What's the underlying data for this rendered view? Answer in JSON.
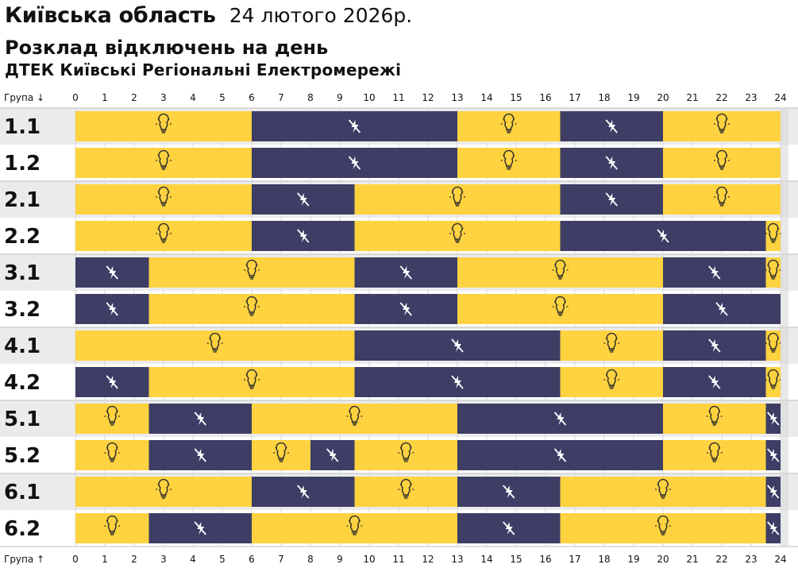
{
  "header": {
    "region": "Київська область",
    "date": "24 лютого 2026р.",
    "subtitle": "Розклад відключень на день",
    "company": "ДТЕК Київські Регіональні Електромережі"
  },
  "colors": {
    "power_on": "#FFD23F",
    "power_off": "#3D3D66",
    "row_odd_bg": "#EBEBEB",
    "row_even_bg": "#FFFFFF",
    "separator": "#BDBDBD",
    "text": "#111111"
  },
  "chart_data": {
    "type": "timeline",
    "axis_label_top": "Група ↓",
    "axis_label_bottom": "Група ↑",
    "x_range": [
      0,
      24
    ],
    "x_ticks": [
      "0",
      "1",
      "2",
      "3",
      "4",
      "5",
      "6",
      "7",
      "8",
      "9",
      "10",
      "11",
      "12",
      "13",
      "14",
      "15",
      "16",
      "17",
      "18",
      "19",
      "20",
      "21",
      "22",
      "23",
      "24"
    ],
    "states": {
      "on": "power on (bulb icon)",
      "off": "power off (no-power icon)"
    },
    "groups": [
      {
        "name": "1.1",
        "segments": [
          {
            "start": 0,
            "end": 6,
            "state": "on"
          },
          {
            "start": 6,
            "end": 13,
            "state": "off"
          },
          {
            "start": 13,
            "end": 16.5,
            "state": "on"
          },
          {
            "start": 16.5,
            "end": 20,
            "state": "off"
          },
          {
            "start": 20,
            "end": 24,
            "state": "on"
          }
        ]
      },
      {
        "name": "1.2",
        "segments": [
          {
            "start": 0,
            "end": 6,
            "state": "on"
          },
          {
            "start": 6,
            "end": 13,
            "state": "off"
          },
          {
            "start": 13,
            "end": 16.5,
            "state": "on"
          },
          {
            "start": 16.5,
            "end": 20,
            "state": "off"
          },
          {
            "start": 20,
            "end": 24,
            "state": "on"
          }
        ]
      },
      {
        "name": "2.1",
        "segments": [
          {
            "start": 0,
            "end": 6,
            "state": "on"
          },
          {
            "start": 6,
            "end": 9.5,
            "state": "off"
          },
          {
            "start": 9.5,
            "end": 16.5,
            "state": "on"
          },
          {
            "start": 16.5,
            "end": 20,
            "state": "off"
          },
          {
            "start": 20,
            "end": 24,
            "state": "on"
          }
        ]
      },
      {
        "name": "2.2",
        "segments": [
          {
            "start": 0,
            "end": 6,
            "state": "on"
          },
          {
            "start": 6,
            "end": 9.5,
            "state": "off"
          },
          {
            "start": 9.5,
            "end": 16.5,
            "state": "on"
          },
          {
            "start": 16.5,
            "end": 23.5,
            "state": "off"
          },
          {
            "start": 23.5,
            "end": 24,
            "state": "on"
          }
        ]
      },
      {
        "name": "3.1",
        "segments": [
          {
            "start": 0,
            "end": 2.5,
            "state": "off"
          },
          {
            "start": 2.5,
            "end": 9.5,
            "state": "on"
          },
          {
            "start": 9.5,
            "end": 13,
            "state": "off"
          },
          {
            "start": 13,
            "end": 20,
            "state": "on"
          },
          {
            "start": 20,
            "end": 23.5,
            "state": "off"
          },
          {
            "start": 23.5,
            "end": 24,
            "state": "on"
          }
        ]
      },
      {
        "name": "3.2",
        "segments": [
          {
            "start": 0,
            "end": 2.5,
            "state": "off"
          },
          {
            "start": 2.5,
            "end": 9.5,
            "state": "on"
          },
          {
            "start": 9.5,
            "end": 13,
            "state": "off"
          },
          {
            "start": 13,
            "end": 20,
            "state": "on"
          },
          {
            "start": 20,
            "end": 24,
            "state": "off"
          }
        ]
      },
      {
        "name": "4.1",
        "segments": [
          {
            "start": 0,
            "end": 9.5,
            "state": "on"
          },
          {
            "start": 9.5,
            "end": 16.5,
            "state": "off"
          },
          {
            "start": 16.5,
            "end": 20,
            "state": "on"
          },
          {
            "start": 20,
            "end": 23.5,
            "state": "off"
          },
          {
            "start": 23.5,
            "end": 24,
            "state": "on"
          }
        ]
      },
      {
        "name": "4.2",
        "segments": [
          {
            "start": 0,
            "end": 2.5,
            "state": "off"
          },
          {
            "start": 2.5,
            "end": 9.5,
            "state": "on"
          },
          {
            "start": 9.5,
            "end": 16.5,
            "state": "off"
          },
          {
            "start": 16.5,
            "end": 20,
            "state": "on"
          },
          {
            "start": 20,
            "end": 23.5,
            "state": "off"
          },
          {
            "start": 23.5,
            "end": 24,
            "state": "on"
          }
        ]
      },
      {
        "name": "5.1",
        "segments": [
          {
            "start": 0,
            "end": 2.5,
            "state": "on"
          },
          {
            "start": 2.5,
            "end": 6,
            "state": "off"
          },
          {
            "start": 6,
            "end": 13,
            "state": "on"
          },
          {
            "start": 13,
            "end": 20,
            "state": "off"
          },
          {
            "start": 20,
            "end": 23.5,
            "state": "on"
          },
          {
            "start": 23.5,
            "end": 24,
            "state": "off"
          }
        ]
      },
      {
        "name": "5.2",
        "segments": [
          {
            "start": 0,
            "end": 2.5,
            "state": "on"
          },
          {
            "start": 2.5,
            "end": 6,
            "state": "off"
          },
          {
            "start": 6,
            "end": 8,
            "state": "on"
          },
          {
            "start": 8,
            "end": 9.5,
            "state": "off"
          },
          {
            "start": 9.5,
            "end": 13,
            "state": "on"
          },
          {
            "start": 13,
            "end": 20,
            "state": "off"
          },
          {
            "start": 20,
            "end": 23.5,
            "state": "on"
          },
          {
            "start": 23.5,
            "end": 24,
            "state": "off"
          }
        ]
      },
      {
        "name": "6.1",
        "segments": [
          {
            "start": 0,
            "end": 6,
            "state": "on"
          },
          {
            "start": 6,
            "end": 9.5,
            "state": "off"
          },
          {
            "start": 9.5,
            "end": 13,
            "state": "on"
          },
          {
            "start": 13,
            "end": 16.5,
            "state": "off"
          },
          {
            "start": 16.5,
            "end": 23.5,
            "state": "on"
          },
          {
            "start": 23.5,
            "end": 24,
            "state": "off"
          }
        ]
      },
      {
        "name": "6.2",
        "segments": [
          {
            "start": 0,
            "end": 2.5,
            "state": "on"
          },
          {
            "start": 2.5,
            "end": 6,
            "state": "off"
          },
          {
            "start": 6,
            "end": 13,
            "state": "on"
          },
          {
            "start": 13,
            "end": 16.5,
            "state": "off"
          },
          {
            "start": 16.5,
            "end": 23.5,
            "state": "on"
          },
          {
            "start": 23.5,
            "end": 24,
            "state": "off"
          }
        ]
      }
    ]
  }
}
